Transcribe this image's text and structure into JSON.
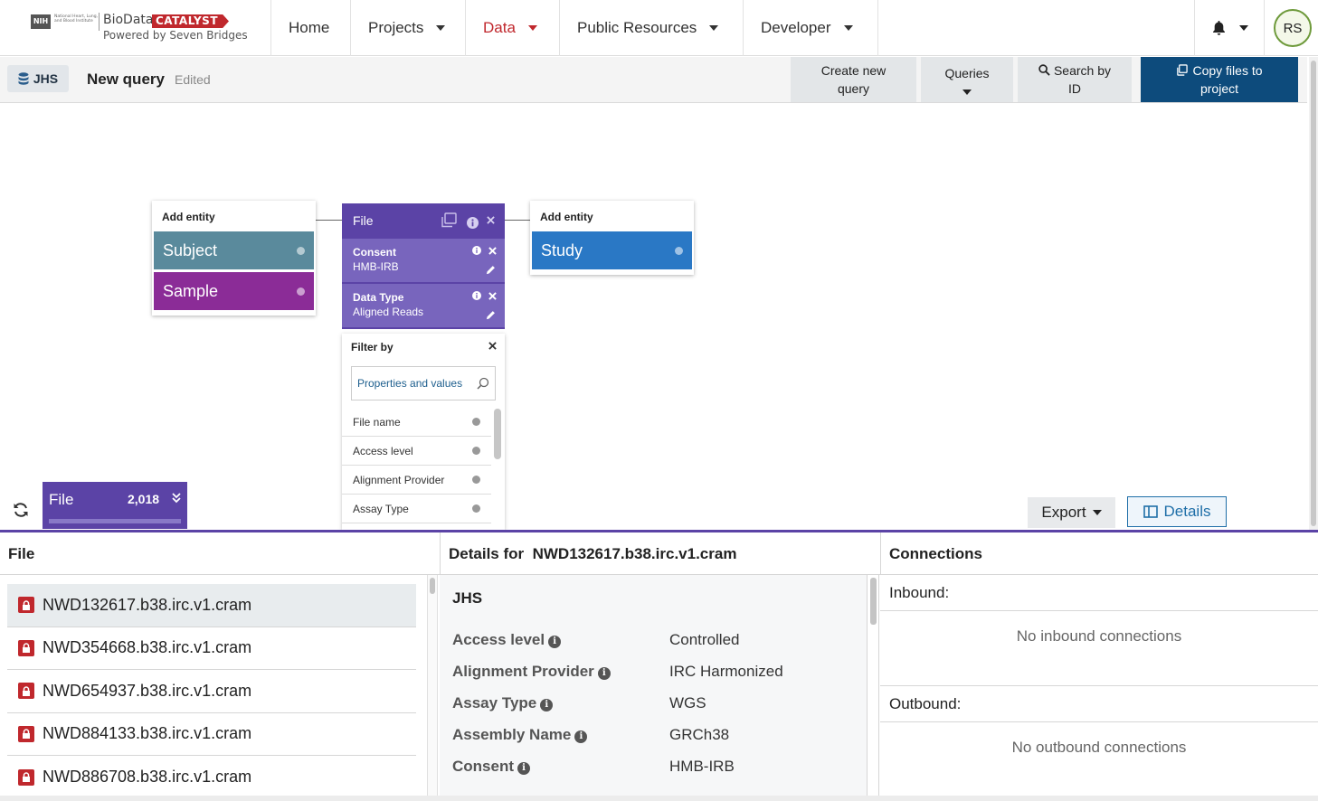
{
  "logo": {
    "nih": "NIH",
    "institute": "National Heart, Lung, and Blood Institute",
    "biodata": "BioData",
    "catalyst": "CATALYST",
    "powered": "Powered by Seven Bridges"
  },
  "nav": {
    "home": "Home",
    "projects": "Projects",
    "data": "Data",
    "public_resources": "Public Resources",
    "developer": "Developer",
    "avatar": "RS"
  },
  "toolbar": {
    "dataset": "JHS",
    "query_title": "New query",
    "status": "Edited",
    "create_line1": "Create new",
    "create_line2": "query",
    "queries": "Queries",
    "search_line1": "Search by",
    "search_line2": "ID",
    "copy_line1": "Copy files to",
    "copy_line2": "project"
  },
  "graph": {
    "left_card": {
      "header": "Add entity",
      "items": [
        "Subject",
        "Sample"
      ],
      "colors": [
        "#5a8a9c",
        "#8b2c97"
      ]
    },
    "right_card": {
      "header": "Add entity",
      "items": [
        "Study"
      ],
      "colors": [
        "#2a78c5"
      ]
    },
    "file_card": {
      "title": "File",
      "filters": [
        {
          "title": "Consent",
          "value": "HMB-IRB"
        },
        {
          "title": "Data Type",
          "value": "Aligned Reads"
        }
      ]
    },
    "filter_by": {
      "title": "Filter by",
      "search_placeholder": "Properties and values",
      "properties": [
        "File name",
        "Access level",
        "Alignment Provider",
        "Assay Type"
      ]
    }
  },
  "result_chip": {
    "entity": "File",
    "count": "2,018"
  },
  "actions": {
    "export": "Export",
    "details": "Details"
  },
  "panels": {
    "file_header": "File",
    "details_prefix": "Details for",
    "details_file": "NWD132617.b38.irc.v1.cram",
    "connections_header": "Connections"
  },
  "files": [
    "NWD132617.b38.irc.v1.cram",
    "NWD354668.b38.irc.v1.cram",
    "NWD654937.b38.irc.v1.cram",
    "NWD884133.b38.irc.v1.cram",
    "NWD886708.b38.irc.v1.cram"
  ],
  "details": {
    "group": "JHS",
    "rows": [
      {
        "key": "Access level",
        "value": "Controlled"
      },
      {
        "key": "Alignment Provider",
        "value": "IRC Harmonized"
      },
      {
        "key": "Assay Type",
        "value": "WGS"
      },
      {
        "key": "Assembly Name",
        "value": "GRCh38"
      },
      {
        "key": "Consent",
        "value": "HMB-IRB"
      }
    ]
  },
  "connections": {
    "inbound_label": "Inbound:",
    "inbound_empty": "No inbound connections",
    "outbound_label": "Outbound:",
    "outbound_empty": "No outbound connections"
  }
}
